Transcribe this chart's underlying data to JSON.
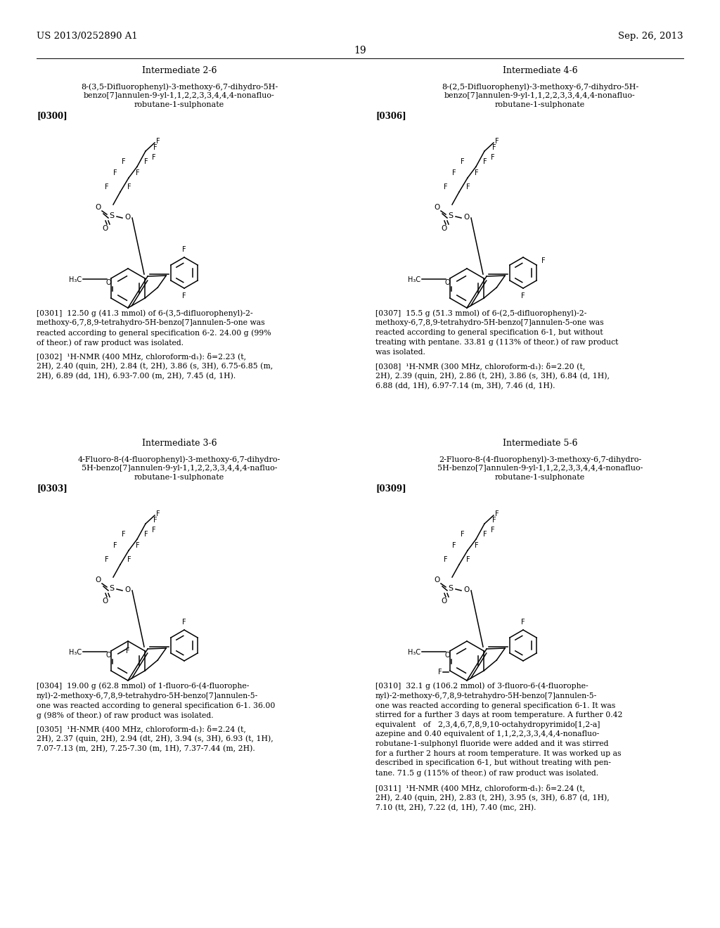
{
  "bg": "#ffffff",
  "header_left": "US 2013/0252890 A1",
  "header_right": "Sep. 26, 2013",
  "page_num": "19",
  "sections": [
    {
      "title": "Intermediate 2-6",
      "name_lines": [
        "8-(3,5-Difluorophenyl)-3-methoxy-6,7-dihydro-5H-",
        "benzo[7]annulen-9-yl-1,1,2,2,3,3,4,4,4-nonafluo-",
        "robutane-1-sulphonate"
      ],
      "tag": "[0300]",
      "col": 0,
      "row": 0
    },
    {
      "title": "Intermediate 4-6",
      "name_lines": [
        "8-(2,5-Difluorophenyl)-3-methoxy-6,7-dihydro-5H-",
        "benzo[7]annulen-9-yl-1,1,2,2,3,3,4,4,4-nonafluo-",
        "robutane-1-sulphonate"
      ],
      "tag": "[0306]",
      "col": 1,
      "row": 0
    },
    {
      "title": "Intermediate 3-6",
      "name_lines": [
        "4-Fluoro-8-(4-fluorophenyl)-3-methoxy-6,7-dihydro-",
        "5H-benzo[7]annulen-9-yl-1,1,2,2,3,3,4,4,4-nafluo-",
        "robutane-1-sulphonate"
      ],
      "tag": "[0303]",
      "col": 0,
      "row": 1
    },
    {
      "title": "Intermediate 5-6",
      "name_lines": [
        "2-Fluoro-8-(4-fluorophenyl)-3-methoxy-6,7-dihydro-",
        "5H-benzo[7]annulen-9-yl-1,1,2,2,3,3,4,4,4-nonafluo-",
        "robutane-1-sulphonate"
      ],
      "tag": "[0309]",
      "col": 1,
      "row": 1
    }
  ],
  "paragraphs_left_top": [
    "[0301]  12.50 g (41.3 mmol) of 6-(3,5-difluorophenyl)-2-\nmethoxy-6,7,8,9-tetrahydro-5H-benzo[7]annulen-5-one was\nreacted according to general specification 6-2. 24.00 g (99%\nof theor.) of raw product was isolated.",
    "[0302]  ¹H-NMR (400 MHz, chloroform-d₁): δ=2.23 (t,\n2H), 2.40 (quin, 2H), 2.84 (t, 2H), 3.86 (s, 3H), 6.75-6.85 (m,\n2H), 6.89 (dd, 1H), 6.93-7.00 (m, 2H), 7.45 (d, 1H)."
  ],
  "paragraphs_right_top": [
    "[0307]  15.5 g (51.3 mmol) of 6-(2,5-difluorophenyl)-2-\nmethoxy-6,7,8,9-tetrahydro-5H-benzo[7]annulen-5-one was\nreacted according to general specification 6-1, but without\ntreating with pentane. 33.81 g (113% of theor.) of raw product\nwas isolated.",
    "[0308]  ¹H-NMR (300 MHz, chloroform-d₁): δ=2.20 (t,\n2H), 2.39 (quin, 2H), 2.86 (t, 2H), 3.86 (s, 3H), 6.84 (d, 1H),\n6.88 (dd, 1H), 6.97-7.14 (m, 3H), 7.46 (d, 1H)."
  ],
  "paragraphs_left_bot": [
    "[0304]  19.00 g (62.8 mmol) of 1-fluoro-6-(4-fluorophe-\nnyl)-2-methoxy-6,7,8,9-tetrahydro-5H-benzo[7]annulen-5-\none was reacted according to general specification 6-1. 36.00\ng (98% of theor.) of raw product was isolated.",
    "[0305]  ¹H-NMR (400 MHz, chloroform-d₁): δ=2.24 (t,\n2H), 2.37 (quin, 2H), 2.94 (dt, 2H), 3.94 (s, 3H), 6.93 (t, 1H),\n7.07-7.13 (m, 2H), 7.25-7.30 (m, 1H), 7.37-7.44 (m, 2H)."
  ],
  "paragraphs_right_bot": [
    "[0310]  32.1 g (106.2 mmol) of 3-fluoro-6-(4-fluorophe-\nnyl)-2-methoxy-6,7,8,9-tetrahydro-5H-benzo[7]annulen-5-\none was reacted according to general specification 6-1. It was\nstirred for a further 3 days at room temperature. A further 0.42\nequivalent   of   2,3,4,6,7,8,9,10-octahydropyrimido[1,2-a]\nazepine and 0.40 equivalent of 1,1,2,2,3,3,4,4,4-nonafluo-\nrobutane-1-sulphonyl fluoride were added and it was stirred\nfor a further 2 hours at room temperature. It was worked up as\ndescribed in specification 6-1, but without treating with pen-\ntane. 71.5 g (115% of theor.) of raw product was isolated.",
    "[0311]  ¹H-NMR (400 MHz, chloroform-d₁): δ=2.24 (t,\n2H), 2.40 (quin, 2H), 2.83 (t, 2H), 3.95 (s, 3H), 6.87 (d, 1H),\n7.10 (tt, 2H), 7.22 (d, 1H), 7.40 (mc, 2H)."
  ]
}
